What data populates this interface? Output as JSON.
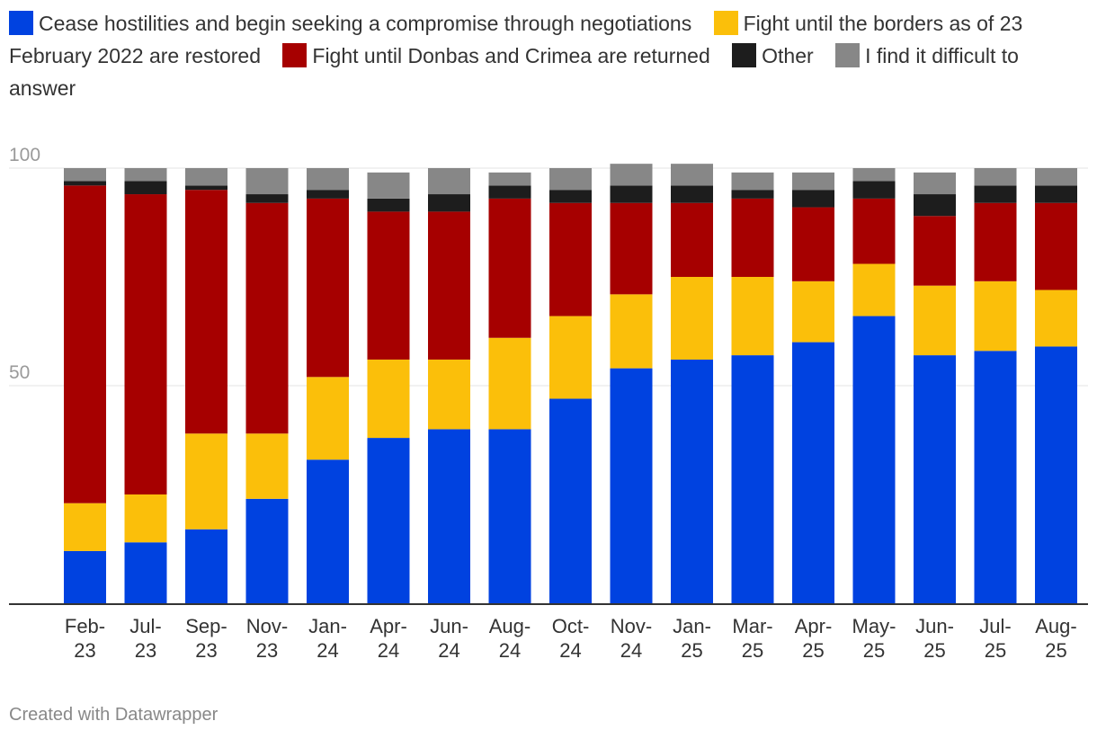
{
  "chart_data": {
    "type": "bar",
    "stacked": true,
    "categories": [
      "Feb-23",
      "Jul-23",
      "Sep-23",
      "Nov-23",
      "Jan-24",
      "Apr-24",
      "Jun-24",
      "Aug-24",
      "Oct-24",
      "Nov-24",
      "Jan-25",
      "Mar-25",
      "Apr-25",
      "May-25",
      "Jun-25",
      "Jul-25",
      "Aug-25"
    ],
    "series": [
      {
        "name": "Cease hostilities and begin seeking a compromise through negotiations",
        "color": "#0042e0",
        "values": [
          12,
          14,
          17,
          24,
          33,
          38,
          40,
          40,
          47,
          54,
          56,
          57,
          60,
          66,
          57,
          58,
          59
        ]
      },
      {
        "name": "Fight until the borders as of 23 February 2022 are restored",
        "color": "#fbbf0a",
        "values": [
          11,
          11,
          22,
          15,
          19,
          18,
          16,
          21,
          19,
          17,
          19,
          18,
          14,
          12,
          16,
          16,
          13
        ]
      },
      {
        "name": "Fight until Donbas and Crimea are returned",
        "color": "#a60000",
        "values": [
          73,
          69,
          56,
          53,
          41,
          34,
          34,
          32,
          26,
          21,
          17,
          18,
          17,
          15,
          16,
          18,
          20
        ]
      },
      {
        "name": "Other",
        "color": "#1d1d1d",
        "values": [
          1,
          3,
          1,
          2,
          2,
          3,
          4,
          3,
          3,
          4,
          4,
          2,
          4,
          4,
          5,
          4,
          4
        ]
      },
      {
        "name": "I find it difficult to answer",
        "color": "#878787",
        "values": [
          3,
          3,
          4,
          6,
          5,
          6,
          6,
          3,
          5,
          5,
          5,
          4,
          4,
          3,
          5,
          4,
          4
        ]
      }
    ],
    "yticks": [
      "100",
      "50"
    ],
    "ylim": [
      0,
      100
    ],
    "title": "",
    "xlabel": "",
    "ylabel": "",
    "grid": true,
    "legend": "top"
  },
  "footer": {
    "credit": "Created with Datawrapper"
  }
}
